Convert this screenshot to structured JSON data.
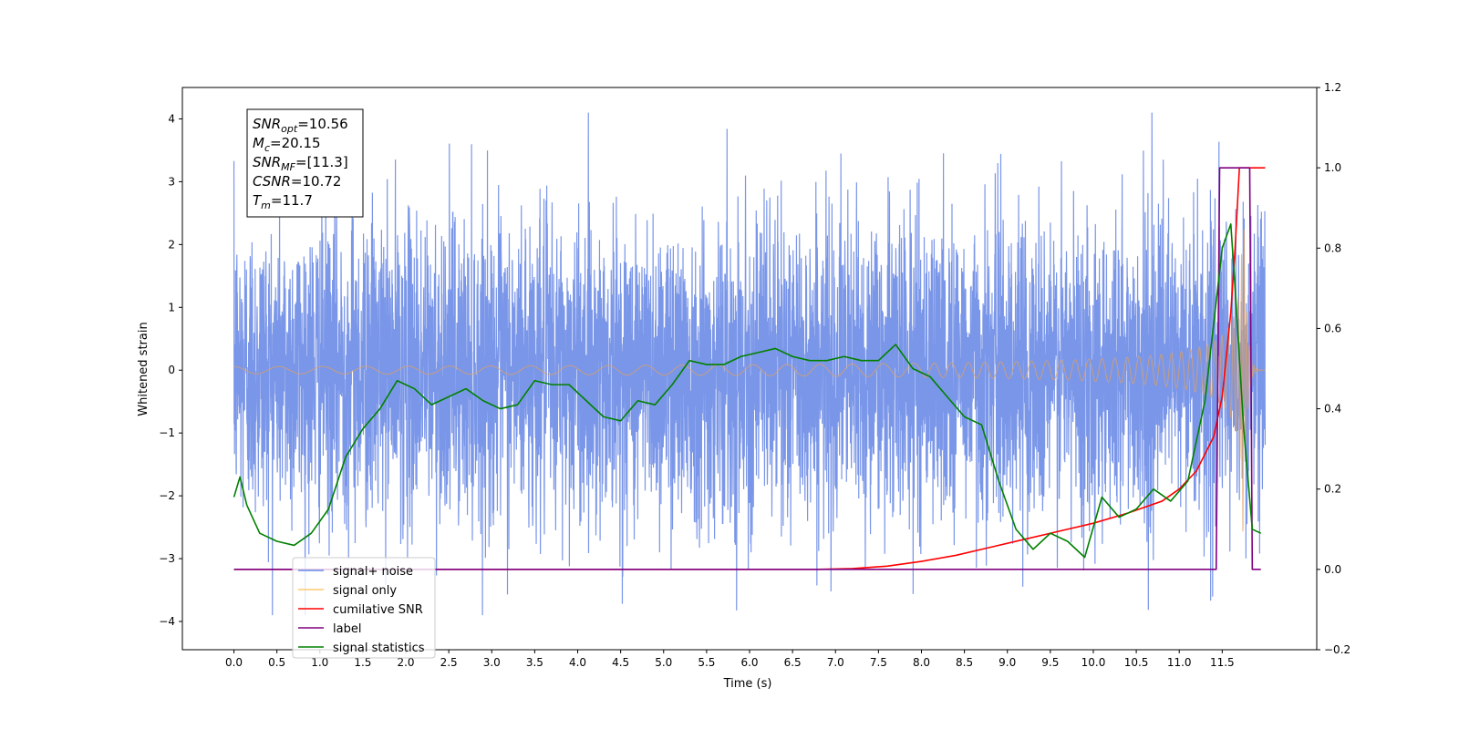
{
  "chart_data": {
    "type": "line",
    "xlabel": "Time (s)",
    "ylabel": "Whitened strain",
    "xlim": [
      -0.6,
      12.6
    ],
    "ylim": [
      -4.45,
      4.5
    ],
    "y2lim": [
      -0.2,
      1.2
    ],
    "x_ticks": [
      0.0,
      0.5,
      1.0,
      1.5,
      2.0,
      2.5,
      3.0,
      3.5,
      4.0,
      4.5,
      5.0,
      5.5,
      6.0,
      6.5,
      7.0,
      7.5,
      8.0,
      8.5,
      9.0,
      9.5,
      10.0,
      10.5,
      11.0,
      11.5
    ],
    "x_tick_labels": [
      "0.0",
      "0.5",
      "1.0",
      "1.5",
      "2.0",
      "2.5",
      "3.0",
      "3.5",
      "4.0",
      "4.5",
      "5.0",
      "5.5",
      "6.0",
      "6.5",
      "7.0",
      "7.5",
      "8.0",
      "8.5",
      "9.0",
      "9.5",
      "10.0",
      "10.5",
      "11.0",
      "11.5"
    ],
    "y_ticks": [
      -4,
      -3,
      -2,
      -1,
      0,
      1,
      2,
      3,
      4
    ],
    "y_tick_labels": [
      "−4",
      "−3",
      "−2",
      "−1",
      "0",
      "1",
      "2",
      "3",
      "4"
    ],
    "y2_ticks": [
      -0.2,
      0.0,
      0.2,
      0.4,
      0.6,
      0.8,
      1.0,
      1.2
    ],
    "y2_tick_labels": [
      "−0.2",
      "0.0",
      "0.2",
      "0.4",
      "0.6",
      "0.8",
      "1.0",
      "1.2"
    ],
    "legend": {
      "placement": "lower-left",
      "entries": [
        {
          "label": "signal+ noise",
          "color": "#6b8be6"
        },
        {
          "label": "signal only",
          "color": "#ffc870"
        },
        {
          "label": "cumilative SNR",
          "color": "#ff0000"
        },
        {
          "label": "label",
          "color": "#800080"
        },
        {
          "label": "signal statistics",
          "color": "#008000"
        }
      ]
    },
    "annotation": {
      "lines": [
        {
          "main": "SNR",
          "sub": "opt",
          "rest": "=10.56"
        },
        {
          "main": "M",
          "sub": "c",
          "rest": "=20.15"
        },
        {
          "main": "SNR",
          "sub": "MF",
          "rest": "=[11.3]"
        },
        {
          "main": "CSNR",
          "sub": "",
          "rest": "=10.72"
        },
        {
          "main": "T",
          "sub": "m",
          "rest": "=11.7"
        }
      ]
    },
    "series": [
      {
        "name": "signal+ noise",
        "axis": "left",
        "color": "#6b8be6",
        "style": "noise",
        "x_range": [
          0.0,
          12.0
        ],
        "typical_envelope": [
          -2.0,
          2.3
        ],
        "extreme_range": [
          -3.9,
          4.1
        ]
      },
      {
        "name": "signal only",
        "axis": "left",
        "color": "#e0a060",
        "style": "chirp",
        "x_range": [
          0.0,
          12.0
        ],
        "chirp_peak_time": 11.7,
        "peak_amplitude": 2.6
      },
      {
        "name": "cumilative SNR",
        "axis": "right",
        "color": "#ff0000",
        "x": [
          0.0,
          6.8,
          7.2,
          7.6,
          8.0,
          8.4,
          8.8,
          9.2,
          9.6,
          10.0,
          10.4,
          10.8,
          11.0,
          11.2,
          11.4,
          11.5,
          11.6,
          11.65,
          11.7,
          12.0
        ],
        "y": [
          0.0,
          0.0,
          0.002,
          0.008,
          0.02,
          0.035,
          0.055,
          0.075,
          0.095,
          0.115,
          0.14,
          0.17,
          0.2,
          0.245,
          0.33,
          0.43,
          0.64,
          0.8,
          1.0,
          1.0
        ]
      },
      {
        "name": "label",
        "axis": "right",
        "color": "#800080",
        "x": [
          0.0,
          11.43,
          11.47,
          11.82,
          11.85,
          11.95
        ],
        "y": [
          0.0,
          0.0,
          1.0,
          1.0,
          0.0,
          0.0
        ]
      },
      {
        "name": "signal statistics",
        "axis": "right",
        "color": "#008000",
        "x": [
          0.0,
          0.07,
          0.15,
          0.3,
          0.5,
          0.7,
          0.9,
          1.1,
          1.3,
          1.5,
          1.7,
          1.9,
          2.1,
          2.3,
          2.5,
          2.7,
          2.9,
          3.1,
          3.3,
          3.5,
          3.7,
          3.9,
          4.1,
          4.3,
          4.5,
          4.7,
          4.9,
          5.1,
          5.3,
          5.5,
          5.7,
          5.9,
          6.1,
          6.3,
          6.5,
          6.7,
          6.9,
          7.1,
          7.3,
          7.5,
          7.7,
          7.9,
          8.1,
          8.3,
          8.5,
          8.7,
          8.9,
          9.1,
          9.3,
          9.5,
          9.7,
          9.9,
          10.1,
          10.3,
          10.5,
          10.7,
          10.9,
          11.1,
          11.3,
          11.5,
          11.6,
          11.65,
          11.75,
          11.85,
          11.95
        ],
        "y": [
          0.18,
          0.23,
          0.16,
          0.09,
          0.07,
          0.06,
          0.09,
          0.15,
          0.28,
          0.35,
          0.4,
          0.47,
          0.45,
          0.41,
          0.43,
          0.45,
          0.42,
          0.4,
          0.41,
          0.47,
          0.46,
          0.46,
          0.42,
          0.38,
          0.37,
          0.42,
          0.41,
          0.46,
          0.52,
          0.51,
          0.51,
          0.53,
          0.54,
          0.55,
          0.53,
          0.52,
          0.52,
          0.53,
          0.52,
          0.52,
          0.56,
          0.5,
          0.48,
          0.43,
          0.38,
          0.36,
          0.22,
          0.1,
          0.05,
          0.09,
          0.07,
          0.03,
          0.18,
          0.13,
          0.15,
          0.2,
          0.17,
          0.22,
          0.42,
          0.8,
          0.86,
          0.7,
          0.35,
          0.1,
          0.09
        ]
      }
    ]
  }
}
